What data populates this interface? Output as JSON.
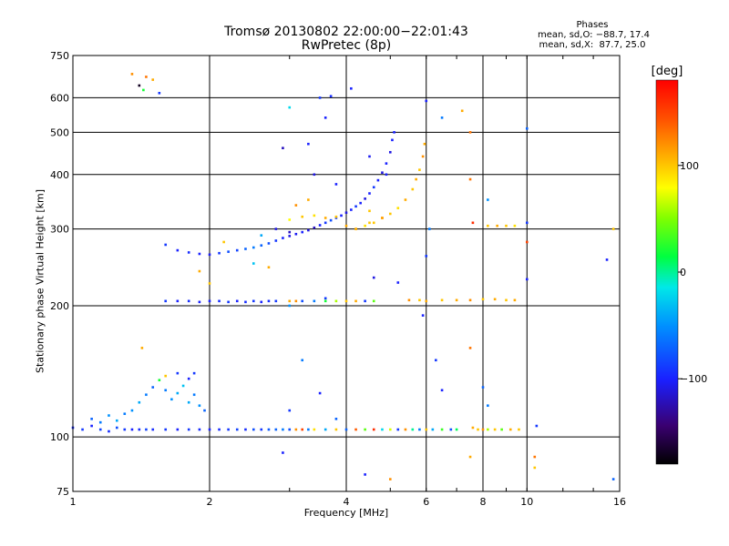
{
  "header": {
    "title_line1": "Tromsø 20130802 22:00:00−22:01:43",
    "title_line2": "RwPretec (8p)"
  },
  "phase_box": {
    "label": "Phases",
    "line_o": "mean, sd,O: −88.7, 17.4",
    "line_x": "mean, sd,X:  87.7, 25.0"
  },
  "colors": {
    "grid": "#000000",
    "background": "#ffffff"
  },
  "chart_data": {
    "type": "scatter",
    "xlabel": "Frequency [MHz]",
    "ylabel": "Stationary phase Virtual Height [km]",
    "x_scale": "log",
    "y_scale": "log",
    "xlim": [
      1,
      16
    ],
    "ylim": [
      75,
      750
    ],
    "x_ticks": [
      1,
      2,
      4,
      6,
      8,
      10,
      16
    ],
    "x_tick_labels": [
      "1",
      "2",
      "4",
      "6",
      "8",
      "10",
      "16"
    ],
    "y_ticks": [
      75,
      100,
      200,
      300,
      400,
      500,
      600,
      750
    ],
    "y_tick_labels": [
      "75",
      "100",
      "200",
      "300",
      "400",
      "500",
      "600",
      "750"
    ],
    "grid": true,
    "colorbar": {
      "label": "[deg]",
      "range": [
        -180,
        180
      ],
      "ticks": [
        100,
        0,
        -100
      ],
      "tick_labels": [
        "100",
        "0",
        "−100"
      ]
    },
    "series": [
      {
        "points": [
          [
            1.0,
            105,
            -95
          ],
          [
            1.05,
            104,
            -90
          ],
          [
            1.1,
            106,
            -100
          ],
          [
            1.15,
            104,
            -85
          ],
          [
            1.2,
            103,
            -95
          ],
          [
            1.25,
            105,
            -80
          ],
          [
            1.3,
            104,
            -90
          ],
          [
            1.35,
            104,
            -100
          ],
          [
            1.4,
            104,
            -95
          ],
          [
            1.45,
            104,
            -85
          ],
          [
            1.5,
            104,
            -95
          ],
          [
            1.6,
            104,
            -90
          ],
          [
            1.7,
            104,
            -100
          ],
          [
            1.8,
            104,
            -90
          ],
          [
            1.9,
            104,
            -95
          ],
          [
            2.0,
            104,
            -100
          ],
          [
            2.1,
            104,
            -95
          ],
          [
            2.2,
            104,
            -90
          ],
          [
            2.3,
            104,
            -85
          ],
          [
            2.4,
            104,
            -95
          ],
          [
            2.5,
            104,
            -80
          ],
          [
            2.6,
            104,
            -90
          ],
          [
            2.7,
            104,
            -75
          ],
          [
            2.8,
            104,
            -70
          ],
          [
            2.9,
            104,
            -60
          ],
          [
            3.0,
            104,
            -80
          ],
          [
            3.1,
            104,
            120
          ],
          [
            3.2,
            104,
            150
          ],
          [
            3.3,
            104,
            -60
          ],
          [
            3.4,
            104,
            90
          ],
          [
            3.6,
            104,
            -40
          ],
          [
            3.8,
            104,
            100
          ],
          [
            4.0,
            104,
            -70
          ],
          [
            4.2,
            104,
            140
          ],
          [
            4.4,
            104,
            40
          ],
          [
            4.6,
            104,
            160
          ],
          [
            4.8,
            104,
            -20
          ],
          [
            5.0,
            104,
            70
          ],
          [
            5.2,
            104,
            -90
          ],
          [
            5.4,
            104,
            120
          ],
          [
            5.6,
            104,
            0
          ],
          [
            5.8,
            104,
            -60
          ],
          [
            6.0,
            104,
            100
          ],
          [
            6.2,
            104,
            -40
          ],
          [
            6.5,
            104,
            30
          ],
          [
            6.8,
            104,
            -80
          ],
          [
            7.0,
            104,
            10
          ],
          [
            7.6,
            105,
            110
          ],
          [
            7.8,
            104,
            100
          ],
          [
            8.0,
            104,
            120
          ],
          [
            8.2,
            104,
            60
          ],
          [
            8.5,
            104,
            100
          ],
          [
            8.8,
            104,
            40
          ],
          [
            9.2,
            104,
            110
          ],
          [
            9.6,
            104,
            100
          ],
          [
            10.5,
            106,
            -90
          ]
        ]
      },
      {
        "points": [
          [
            1.1,
            110,
            -70
          ],
          [
            1.15,
            108,
            -60
          ],
          [
            1.2,
            112,
            -50
          ],
          [
            1.25,
            109,
            -40
          ],
          [
            1.3,
            113,
            -60
          ],
          [
            1.35,
            115,
            -50
          ],
          [
            1.4,
            120,
            -40
          ],
          [
            1.45,
            125,
            -60
          ],
          [
            1.5,
            130,
            -70
          ],
          [
            1.55,
            135,
            20
          ],
          [
            1.6,
            128,
            -60
          ],
          [
            1.65,
            122,
            -50
          ],
          [
            1.7,
            126,
            -40
          ],
          [
            1.75,
            131,
            -30
          ],
          [
            1.8,
            120,
            -40
          ],
          [
            1.85,
            125,
            -60
          ],
          [
            1.9,
            118,
            -50
          ],
          [
            1.95,
            115,
            -70
          ],
          [
            1.6,
            138,
            100
          ],
          [
            1.7,
            140,
            -90
          ],
          [
            1.8,
            136,
            -100
          ],
          [
            1.85,
            140,
            -90
          ],
          [
            1.42,
            160,
            110
          ]
        ]
      },
      {
        "points": [
          [
            1.6,
            276,
            -90
          ],
          [
            1.7,
            268,
            -100
          ],
          [
            1.8,
            265,
            -95
          ],
          [
            1.9,
            263,
            -100
          ],
          [
            2.0,
            262,
            -105
          ],
          [
            2.1,
            264,
            -90
          ],
          [
            2.2,
            266,
            -80
          ],
          [
            2.3,
            268,
            -85
          ],
          [
            2.4,
            270,
            -70
          ],
          [
            2.5,
            272,
            -60
          ],
          [
            2.6,
            275,
            -70
          ],
          [
            2.7,
            278,
            -80
          ],
          [
            2.8,
            282,
            -90
          ],
          [
            2.9,
            286,
            -100
          ],
          [
            3.0,
            289,
            -110
          ],
          [
            3.1,
            292,
            -105
          ],
          [
            3.2,
            295,
            -100
          ],
          [
            3.3,
            298,
            -110
          ],
          [
            3.4,
            302,
            -120
          ],
          [
            3.5,
            306,
            -100
          ],
          [
            3.6,
            310,
            -90
          ],
          [
            3.7,
            314,
            -80
          ],
          [
            3.8,
            318,
            -90
          ],
          [
            3.9,
            322,
            -100
          ],
          [
            4.0,
            327,
            -110
          ],
          [
            4.1,
            332,
            -100
          ],
          [
            4.2,
            338,
            -90
          ],
          [
            4.3,
            344,
            -100
          ],
          [
            4.4,
            352,
            -110
          ],
          [
            4.5,
            362,
            -100
          ],
          [
            4.6,
            374,
            -90
          ],
          [
            4.7,
            388,
            -100
          ],
          [
            4.8,
            404,
            -110
          ],
          [
            4.9,
            424,
            -100
          ],
          [
            5.0,
            450,
            -110
          ],
          [
            5.05,
            480,
            -100
          ],
          [
            5.1,
            500,
            -100
          ],
          [
            2.6,
            290,
            -40
          ],
          [
            2.8,
            300,
            -110
          ],
          [
            3.0,
            295,
            -120
          ]
        ]
      },
      {
        "points": [
          [
            3.0,
            315,
            80
          ],
          [
            3.2,
            320,
            100
          ],
          [
            3.4,
            322,
            90
          ],
          [
            3.6,
            318,
            110
          ],
          [
            3.8,
            320,
            100
          ],
          [
            4.0,
            305,
            110
          ],
          [
            4.2,
            300,
            100
          ],
          [
            4.4,
            305,
            90
          ],
          [
            4.6,
            310,
            100
          ],
          [
            4.8,
            318,
            110
          ],
          [
            5.0,
            325,
            100
          ],
          [
            5.2,
            335,
            90
          ],
          [
            5.4,
            350,
            110
          ],
          [
            5.6,
            370,
            100
          ],
          [
            5.7,
            390,
            110
          ],
          [
            5.8,
            410,
            100
          ],
          [
            5.9,
            440,
            120
          ],
          [
            5.95,
            470,
            110
          ],
          [
            3.1,
            340,
            120
          ],
          [
            3.3,
            350,
            110
          ],
          [
            4.5,
            330,
            100
          ]
        ]
      },
      {
        "points": [
          [
            1.6,
            205,
            -90
          ],
          [
            1.7,
            205,
            -100
          ],
          [
            1.8,
            205,
            -95
          ],
          [
            1.9,
            204,
            -100
          ],
          [
            2.0,
            205,
            -100
          ],
          [
            2.1,
            205,
            -95
          ],
          [
            2.2,
            204,
            -90
          ],
          [
            2.3,
            205,
            -100
          ],
          [
            2.4,
            204,
            -95
          ],
          [
            2.5,
            205,
            -90
          ],
          [
            2.6,
            204,
            -100
          ],
          [
            2.7,
            205,
            -95
          ],
          [
            2.8,
            205,
            -90
          ],
          [
            3.0,
            205,
            110
          ],
          [
            3.1,
            205,
            120
          ],
          [
            3.2,
            205,
            -80
          ],
          [
            3.4,
            205,
            -60
          ],
          [
            3.6,
            205,
            20
          ],
          [
            3.8,
            205,
            60
          ],
          [
            4.0,
            205,
            100
          ],
          [
            4.2,
            205,
            110
          ],
          [
            4.4,
            205,
            -90
          ],
          [
            4.6,
            205,
            40
          ],
          [
            5.5,
            206,
            120
          ],
          [
            5.8,
            206,
            100
          ],
          [
            6.0,
            205,
            110
          ],
          [
            6.5,
            206,
            100
          ],
          [
            7.0,
            206,
            110
          ],
          [
            7.5,
            206,
            120
          ],
          [
            8.0,
            207,
            100
          ],
          [
            8.5,
            207,
            110
          ],
          [
            9.0,
            206,
            100
          ],
          [
            9.4,
            206,
            110
          ]
        ]
      },
      {
        "points": [
          [
            4.2,
            300,
            110
          ],
          [
            4.5,
            310,
            100
          ],
          [
            4.8,
            318,
            115
          ],
          [
            8.2,
            305,
            100
          ],
          [
            8.6,
            305,
            110
          ],
          [
            9.0,
            305,
            100
          ],
          [
            9.4,
            305,
            90
          ],
          [
            5.2,
            226,
            -100
          ],
          [
            4.6,
            232,
            -110
          ],
          [
            3.6,
            208,
            -90
          ]
        ]
      },
      {
        "points": [
          [
            1.35,
            680,
            120
          ],
          [
            1.45,
            670,
            130
          ],
          [
            1.5,
            660,
            110
          ],
          [
            1.4,
            640,
            -170
          ],
          [
            1.43,
            625,
            20
          ],
          [
            1.55,
            615,
            -90
          ],
          [
            3.5,
            600,
            -90
          ],
          [
            3.7,
            605,
            -95
          ],
          [
            4.1,
            630,
            -100
          ],
          [
            3.0,
            570,
            -20
          ],
          [
            3.6,
            540,
            -100
          ],
          [
            2.9,
            460,
            -120
          ],
          [
            3.3,
            470,
            -100
          ],
          [
            3.4,
            400,
            -110
          ],
          [
            3.8,
            380,
            -100
          ],
          [
            4.5,
            440,
            -105
          ],
          [
            4.9,
            400,
            -100
          ],
          [
            6.0,
            590,
            -100
          ],
          [
            6.5,
            540,
            -60
          ],
          [
            7.2,
            560,
            110
          ],
          [
            7.5,
            500,
            130
          ],
          [
            7.5,
            390,
            130
          ],
          [
            7.6,
            310,
            160
          ],
          [
            6.1,
            300,
            -60
          ],
          [
            5.9,
            190,
            -100
          ],
          [
            6.0,
            260,
            -90
          ],
          [
            10.0,
            310,
            -90
          ],
          [
            10.0,
            280,
            150
          ],
          [
            10.0,
            230,
            -100
          ],
          [
            15.0,
            255,
            -100
          ],
          [
            15.5,
            300,
            100
          ],
          [
            2.7,
            245,
            110
          ],
          [
            1.9,
            240,
            110
          ],
          [
            2.0,
            225,
            100
          ],
          [
            2.15,
            280,
            100
          ],
          [
            2.5,
            250,
            -30
          ],
          [
            3.0,
            200,
            -50
          ],
          [
            3.2,
            150,
            -60
          ],
          [
            3.5,
            126,
            -100
          ],
          [
            3.0,
            115,
            -90
          ],
          [
            3.8,
            110,
            -70
          ],
          [
            6.3,
            150,
            -90
          ],
          [
            6.5,
            128,
            -100
          ],
          [
            7.5,
            160,
            130
          ],
          [
            8.0,
            130,
            -70
          ],
          [
            8.2,
            118,
            -60
          ],
          [
            7.5,
            90,
            110
          ],
          [
            10.4,
            90,
            130
          ],
          [
            10.4,
            85,
            100
          ],
          [
            4.4,
            82,
            -100
          ],
          [
            5.0,
            80,
            120
          ],
          [
            2.9,
            92,
            -100
          ],
          [
            15.5,
            80,
            -70
          ],
          [
            8.2,
            350,
            -50
          ],
          [
            10.0,
            510,
            -70
          ]
        ]
      }
    ]
  }
}
